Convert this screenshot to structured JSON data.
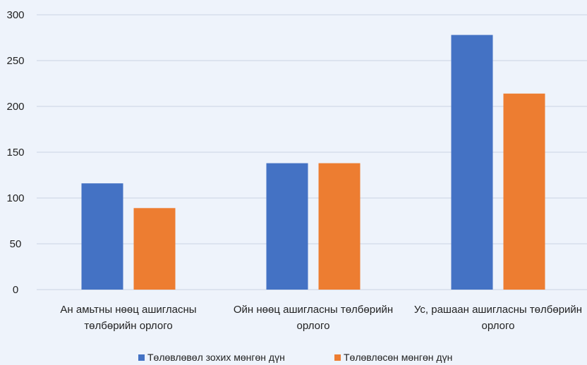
{
  "chart_data": {
    "type": "bar",
    "title": "",
    "xlabel": "",
    "ylabel": "",
    "categories": [
      [
        "Ан амьтны нөөц ашигласны",
        "төлбөрийн орлого"
      ],
      [
        "Ойн нөөц ашигласны төлбөрийн",
        "орлого"
      ],
      [
        "Ус, рашаан ашигласны төлбөрийн",
        "орлого"
      ]
    ],
    "series": [
      {
        "name": "Төлөвлөвөл зохих мөнгөн дүн",
        "color": "#4472c4",
        "values": [
          116,
          138,
          278
        ]
      },
      {
        "name": "Төлөвлөсөн мөнгөн дүн",
        "color": "#ed7d31",
        "values": [
          89,
          138,
          214
        ]
      }
    ],
    "ylim": [
      0,
      300
    ],
    "yticks": [
      0,
      50,
      100,
      150,
      200,
      250,
      300
    ],
    "grid": true,
    "legend_position": "bottom"
  }
}
